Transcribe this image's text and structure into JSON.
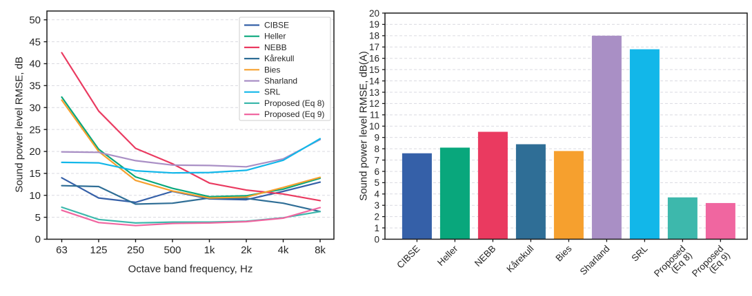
{
  "styles": {
    "grid_color": "#d9d9e0",
    "spine_color": "#1a1a1a",
    "tick_color": "#1a1a1a",
    "text_color": "#262626",
    "legend_border_color": "#cccccc",
    "legend_background": "#ffffff"
  },
  "chart_data": [
    {
      "type": "line",
      "title": "",
      "xlabel": "Octave band frequency, Hz",
      "ylabel": "Sound power level RMSE, dB",
      "x_ticklabels": [
        "63",
        "125",
        "250",
        "500",
        "1k",
        "2k",
        "4k",
        "8k"
      ],
      "ylim": [
        0,
        50
      ],
      "y_tick_step": 5,
      "grid": "horizontal-dashed",
      "legend_position": "upper-right",
      "series": [
        {
          "name": "CIBSE",
          "color": "#3560A8",
          "values": [
            14.0,
            9.4,
            8.4,
            10.9,
            9.2,
            9.0,
            10.9,
            13.0
          ]
        },
        {
          "name": "Heller",
          "color": "#09A77C",
          "values": [
            32.4,
            20.5,
            14.2,
            11.6,
            9.7,
            9.9,
            11.4,
            13.9
          ]
        },
        {
          "name": "NEBB",
          "color": "#EA3A60",
          "values": [
            42.5,
            29.2,
            20.7,
            17.2,
            12.8,
            11.2,
            10.3,
            8.8
          ]
        },
        {
          "name": "Kårekull",
          "color": "#2F6E96",
          "values": [
            12.2,
            12.0,
            8.0,
            8.2,
            9.4,
            9.3,
            8.2,
            6.3
          ]
        },
        {
          "name": "Bies",
          "color": "#F6A02E",
          "values": [
            31.7,
            20.0,
            13.4,
            11.0,
            9.4,
            9.6,
            11.8,
            14.1
          ]
        },
        {
          "name": "Sharland",
          "color": "#A98FC5",
          "values": [
            19.9,
            19.8,
            17.9,
            16.9,
            16.8,
            16.5,
            18.3,
            22.7
          ]
        },
        {
          "name": "SRL",
          "color": "#12B7E9",
          "values": [
            17.5,
            17.4,
            15.6,
            15.1,
            15.2,
            15.7,
            18.0,
            22.9
          ]
        },
        {
          "name": "Proposed (Eq 8)",
          "color": "#3DB8AC",
          "values": [
            7.3,
            4.5,
            3.7,
            3.9,
            3.9,
            4.1,
            4.9,
            6.3
          ]
        },
        {
          "name": "Proposed (Eq 9)",
          "color": "#F066A0",
          "values": [
            6.6,
            3.8,
            3.1,
            3.6,
            3.7,
            4.0,
            4.8,
            7.2
          ]
        }
      ]
    },
    {
      "type": "bar",
      "title": "",
      "xlabel": "",
      "ylabel": "Sound power level RMSE, dB(A)",
      "ylim": [
        0,
        20
      ],
      "y_tick_step": 1,
      "grid": "horizontal-dashed",
      "categories": [
        "CIBSE",
        "Heller",
        "NEBB",
        "Kårekull",
        "Bies",
        "Sharland",
        "SRL",
        "Proposed (Eq 8)",
        "Proposed (Eq 9)"
      ],
      "category_label_lines": [
        [
          "CIBSE"
        ],
        [
          "Heller"
        ],
        [
          "NEBB"
        ],
        [
          "Kårekull"
        ],
        [
          "Bies"
        ],
        [
          "Sharland"
        ],
        [
          "SRL"
        ],
        [
          "Proposed",
          "(Eq 8)"
        ],
        [
          "Proposed",
          "(Eq 9)"
        ]
      ],
      "values": [
        7.6,
        8.1,
        9.5,
        8.4,
        7.8,
        18.0,
        16.8,
        3.7,
        3.2
      ],
      "colors": [
        "#3560A8",
        "#09A77C",
        "#EA3A60",
        "#2F6E96",
        "#F6A02E",
        "#A98FC5",
        "#12B7E9",
        "#3DB8AC",
        "#F066A0"
      ]
    }
  ]
}
